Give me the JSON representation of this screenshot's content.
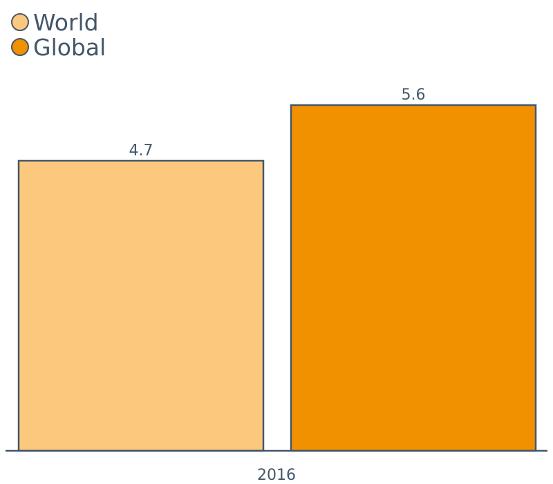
{
  "chart_data": {
    "type": "bar",
    "categories": [
      "2016"
    ],
    "series": [
      {
        "name": "World",
        "values": [
          4.7
        ],
        "color": "#fbc87d"
      },
      {
        "name": "Global",
        "values": [
          5.6
        ],
        "color": "#f29100"
      }
    ],
    "ylim": [
      0,
      5.6
    ],
    "grid": false,
    "legend_position": "top-left",
    "axis_color": "#44576a"
  }
}
